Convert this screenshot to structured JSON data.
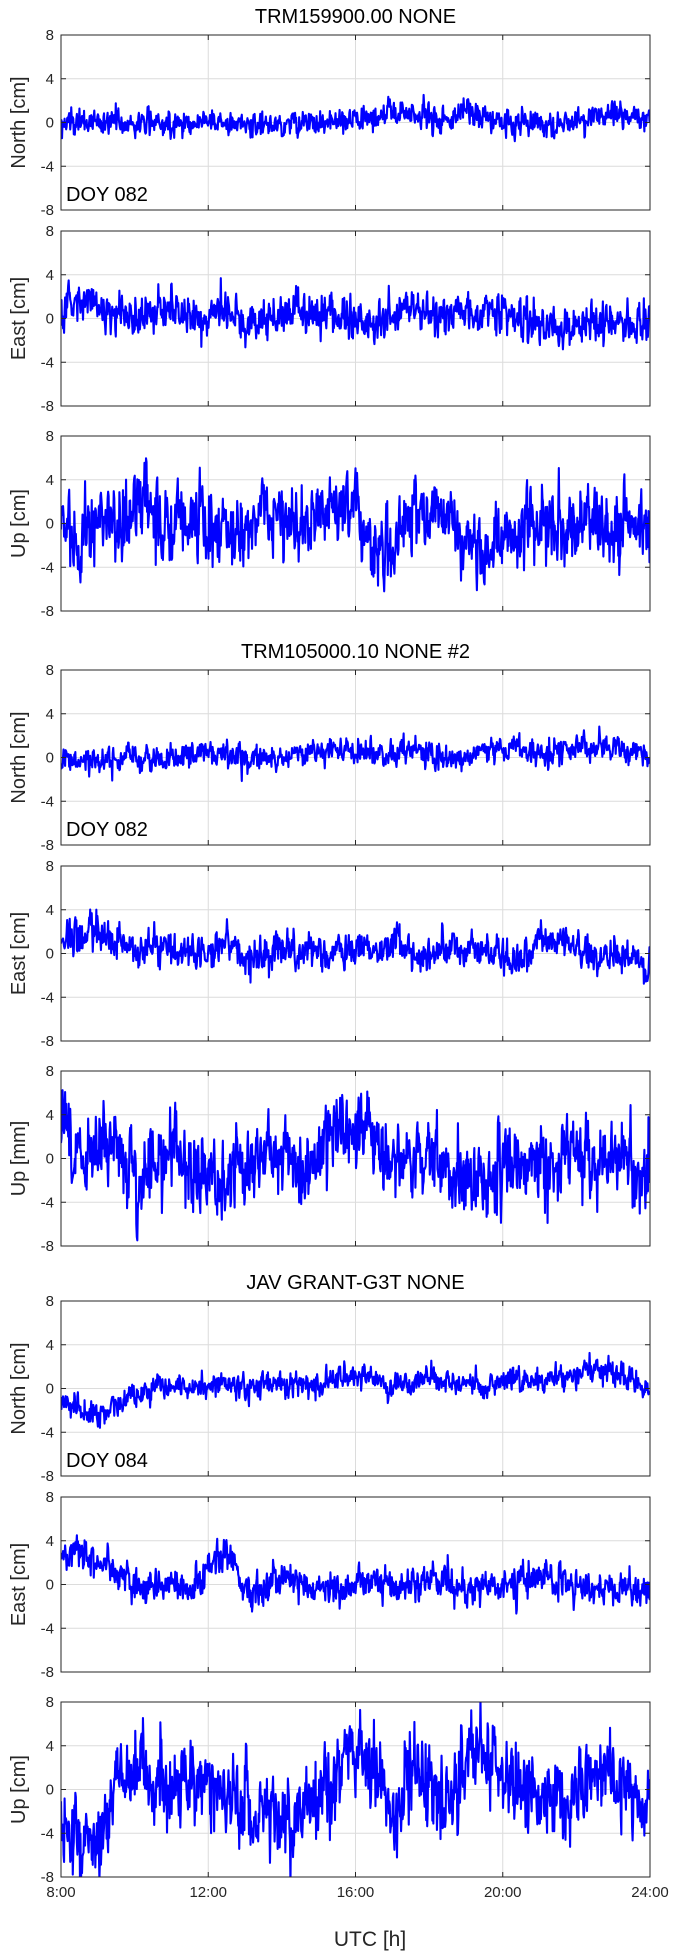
{
  "chart_data": {
    "type": "line",
    "x_unit_label": "UTC [h]",
    "xlim_hours": [
      8,
      24
    ],
    "x_ticks_hours": [
      8,
      12,
      16,
      20,
      24
    ],
    "x_tick_labels": [
      "8:00",
      "12:00",
      "16:00",
      "20:00",
      "24:00"
    ],
    "y_ticks": [
      -8,
      -4,
      0,
      4,
      8
    ],
    "ylim": [
      -8,
      8
    ],
    "grid": true,
    "line_color": "#0000ff",
    "groups": [
      {
        "title": "TRM159900.00 NONE",
        "annotation": "DOY 082",
        "panels": [
          {
            "ylabel": "North [cm]",
            "series": [
              {
                "x": [
                  8,
                  8.5,
                  9,
                  9.5,
                  10,
                  10.5,
                  11,
                  11.5,
                  12,
                  12.5,
                  13,
                  13.5,
                  14,
                  14.5,
                  15,
                  15.5,
                  16,
                  16.5,
                  17,
                  17.5,
                  18,
                  18.5,
                  19,
                  19.5,
                  20,
                  20.5,
                  21,
                  21.5,
                  22,
                  22.5,
                  23,
                  23.5,
                  24
                ],
                "y": [
                  -0.2,
                  0.1,
                  -0.1,
                  0.2,
                  -0.2,
                  0.1,
                  0.0,
                  -0.1,
                  0.2,
                  0.0,
                  -0.3,
                  0.0,
                  -0.2,
                  0.1,
                  0.0,
                  -0.1,
                  0.2,
                  0.4,
                  1.0,
                  0.8,
                  0.5,
                  0.3,
                  1.2,
                  0.4,
                  -0.1,
                  0.2,
                  0.0,
                  -0.3,
                  0.2,
                  0.5,
                  0.6,
                  0.4,
                  0.3
                ]
              }
            ]
          },
          {
            "ylabel": "East [cm]",
            "series": [
              {
                "x": [
                  8,
                  8.5,
                  9,
                  9.5,
                  10,
                  10.5,
                  11,
                  11.5,
                  12,
                  12.5,
                  13,
                  13.5,
                  14,
                  14.5,
                  15,
                  15.5,
                  16,
                  16.5,
                  17,
                  17.5,
                  18,
                  18.5,
                  19,
                  19.5,
                  20,
                  20.5,
                  21,
                  21.5,
                  22,
                  22.5,
                  23,
                  23.5,
                  24
                ],
                "y": [
                  0.8,
                  1.5,
                  1.2,
                  0.6,
                  0.2,
                  0.7,
                  0.4,
                  0.3,
                  0.6,
                  0.8,
                  -0.4,
                  0.0,
                  0.6,
                  0.9,
                  0.4,
                  0.2,
                  -0.3,
                  -0.5,
                  0.1,
                  0.8,
                  0.5,
                  0.2,
                  0.3,
                  0.6,
                  0.1,
                  0.5,
                  -0.4,
                  -0.8,
                  -0.3,
                  -0.1,
                  -0.4,
                  -0.6,
                  -0.5
                ]
              }
            ]
          },
          {
            "ylabel": "Up [cm]",
            "series": [
              {
                "x": [
                  8,
                  8.5,
                  9,
                  9.5,
                  10,
                  10.5,
                  11,
                  11.5,
                  12,
                  12.5,
                  13,
                  13.5,
                  14,
                  14.5,
                  15,
                  15.5,
                  16,
                  16.5,
                  17,
                  17.5,
                  18,
                  18.5,
                  19,
                  19.5,
                  20,
                  20.5,
                  21,
                  21.5,
                  22,
                  22.5,
                  23,
                  23.5,
                  24
                ],
                "y": [
                  0.5,
                  -1.0,
                  0.8,
                  -0.5,
                  1.2,
                  0.3,
                  -0.8,
                  1.0,
                  0.2,
                  -1.2,
                  0.5,
                  1.5,
                  -0.5,
                  0.0,
                  1.2,
                  2.0,
                  0.8,
                  -1.5,
                  -2.0,
                  0.5,
                  1.0,
                  1.2,
                  -1.5,
                  -2.5,
                  -1.2,
                  -0.5,
                  0.2,
                  -0.8,
                  -0.3,
                  0.5,
                  -0.2,
                  0.3,
                  0.0
                ]
              }
            ]
          }
        ]
      },
      {
        "title": "TRM105000.10 NONE #2",
        "annotation": "DOY 082",
        "panels": [
          {
            "ylabel": "North [cm]",
            "series": [
              {
                "x": [
                  8,
                  8.5,
                  9,
                  9.5,
                  10,
                  10.5,
                  11,
                  11.5,
                  12,
                  12.5,
                  13,
                  13.5,
                  14,
                  14.5,
                  15,
                  15.5,
                  16,
                  16.5,
                  17,
                  17.5,
                  18,
                  18.5,
                  19,
                  19.5,
                  20,
                  20.5,
                  21,
                  21.5,
                  22,
                  22.5,
                  23,
                  23.5,
                  24
                ],
                "y": [
                  -0.3,
                  -0.5,
                  -0.4,
                  -0.6,
                  -0.2,
                  0.0,
                  -0.1,
                  0.3,
                  0.2,
                  0.1,
                  -0.2,
                  0.3,
                  0.1,
                  0.4,
                  0.6,
                  0.8,
                  0.7,
                  0.4,
                  0.2,
                  0.6,
                  0.5,
                  -0.2,
                  0.0,
                  0.4,
                  0.8,
                  0.6,
                  0.3,
                  0.7,
                  0.9,
                  1.1,
                  0.8,
                  0.6,
                  0.4
                ]
              }
            ]
          },
          {
            "ylabel": "East [cm]",
            "series": [
              {
                "x": [
                  8,
                  8.5,
                  9,
                  9.5,
                  10,
                  10.5,
                  11,
                  11.5,
                  12,
                  12.5,
                  13,
                  13.5,
                  14,
                  14.5,
                  15,
                  15.5,
                  16,
                  16.5,
                  17,
                  17.5,
                  18,
                  18.5,
                  19,
                  19.5,
                  20,
                  20.5,
                  21,
                  21.5,
                  22,
                  22.5,
                  23,
                  23.5,
                  24
                ],
                "y": [
                  1.0,
                  1.6,
                  2.0,
                  1.2,
                  0.4,
                  0.5,
                  0.2,
                  0.1,
                  -0.2,
                  1.2,
                  -0.8,
                  -0.4,
                  0.3,
                  0.2,
                  -0.1,
                  0.4,
                  0.1,
                  0.3,
                  1.2,
                  0.2,
                  -0.3,
                  0.4,
                  0.8,
                  0.1,
                  -0.4,
                  -0.2,
                  0.9,
                  1.3,
                  0.6,
                  -0.2,
                  0.0,
                  -0.5,
                  -1.0
                ]
              }
            ]
          },
          {
            "ylabel": "Up [mm]",
            "series": [
              {
                "x": [
                  8,
                  8.5,
                  9,
                  9.5,
                  10,
                  10.5,
                  11,
                  11.5,
                  12,
                  12.5,
                  13,
                  13.5,
                  14,
                  14.5,
                  15,
                  15.5,
                  16,
                  16.5,
                  17,
                  17.5,
                  18,
                  18.5,
                  19,
                  19.5,
                  20,
                  20.5,
                  21,
                  21.5,
                  22,
                  22.5,
                  23,
                  23.5,
                  24
                ],
                "y": [
                  3.0,
                  -0.5,
                  0.5,
                  1.0,
                  -1.5,
                  -1.0,
                  0.5,
                  -0.8,
                  -2.0,
                  -1.2,
                  -0.5,
                  0.5,
                  1.0,
                  -0.5,
                  0.2,
                  2.5,
                  2.8,
                  1.5,
                  0.0,
                  -0.5,
                  0.5,
                  -1.0,
                  -2.0,
                  -1.8,
                  -0.5,
                  0.8,
                  -1.2,
                  0.5,
                  1.0,
                  -0.3,
                  0.2,
                  -0.5,
                  -0.8
                ]
              }
            ]
          }
        ]
      },
      {
        "title": "JAV GRANT-G3T NONE",
        "annotation": "DOY 084",
        "panels": [
          {
            "ylabel": "North [cm]",
            "series": [
              {
                "x": [
                  8,
                  8.5,
                  9,
                  9.5,
                  10,
                  10.5,
                  11,
                  11.5,
                  12,
                  12.5,
                  13,
                  13.5,
                  14,
                  14.5,
                  15,
                  15.5,
                  16,
                  16.5,
                  17,
                  17.5,
                  18,
                  18.5,
                  19,
                  19.5,
                  20,
                  20.5,
                  21,
                  21.5,
                  22,
                  22.5,
                  23,
                  23.5,
                  24
                ],
                "y": [
                  -1.0,
                  -1.8,
                  -2.5,
                  -1.5,
                  -0.8,
                  -0.2,
                  0.2,
                  0.0,
                  0.3,
                  0.5,
                  0.1,
                  0.4,
                  0.2,
                  0.6,
                  0.3,
                  0.8,
                  1.2,
                  0.8,
                  0.3,
                  0.5,
                  0.9,
                  0.4,
                  0.5,
                  0.2,
                  0.6,
                  0.4,
                  0.8,
                  1.0,
                  1.4,
                  1.8,
                  1.2,
                  0.9,
                  -0.5
                ]
              }
            ]
          },
          {
            "ylabel": "East [cm]",
            "series": [
              {
                "x": [
                  8,
                  8.5,
                  9,
                  9.5,
                  10,
                  10.5,
                  11,
                  11.5,
                  12,
                  12.5,
                  13,
                  13.5,
                  14,
                  14.5,
                  15,
                  15.5,
                  16,
                  16.5,
                  17,
                  17.5,
                  18,
                  18.5,
                  19,
                  19.5,
                  20,
                  20.5,
                  21,
                  21.5,
                  22,
                  22.5,
                  23,
                  23.5,
                  24
                ],
                "y": [
                  2.5,
                  3.0,
                  2.2,
                  1.0,
                  -0.2,
                  -0.5,
                  0.0,
                  -0.3,
                  1.5,
                  3.0,
                  -0.5,
                  -0.2,
                  0.5,
                  0.1,
                  -0.4,
                  -0.8,
                  0.3,
                  0.6,
                  -0.2,
                  0.4,
                  0.8,
                  0.2,
                  -0.3,
                  0.2,
                  -0.6,
                  0.3,
                  1.0,
                  0.5,
                  -0.2,
                  -0.8,
                  -0.5,
                  -0.2,
                  -0.4
                ]
              }
            ]
          },
          {
            "ylabel": "Up [cm]",
            "series": [
              {
                "x": [
                  8,
                  8.5,
                  9,
                  9.5,
                  10,
                  10.5,
                  11,
                  11.5,
                  12,
                  12.5,
                  13,
                  13.5,
                  14,
                  14.5,
                  15,
                  15.5,
                  16,
                  16.5,
                  17,
                  17.5,
                  18,
                  18.5,
                  19,
                  19.5,
                  20,
                  20.5,
                  21,
                  21.5,
                  22,
                  22.5,
                  23,
                  23.5,
                  24
                ],
                "y": [
                  -3.0,
                  -4.5,
                  -5.5,
                  1.5,
                  2.0,
                  1.0,
                  0.5,
                  1.5,
                  1.0,
                  -0.5,
                  -2.0,
                  -1.5,
                  -3.0,
                  -2.5,
                  -1.5,
                  2.0,
                  3.5,
                  2.0,
                  -1.0,
                  1.5,
                  0.5,
                  -2.0,
                  3.5,
                  4.0,
                  1.5,
                  0.5,
                  -0.5,
                  -1.5,
                  0.5,
                  1.0,
                  0.0,
                  -0.5,
                  -1.0
                ]
              }
            ]
          }
        ]
      }
    ]
  }
}
